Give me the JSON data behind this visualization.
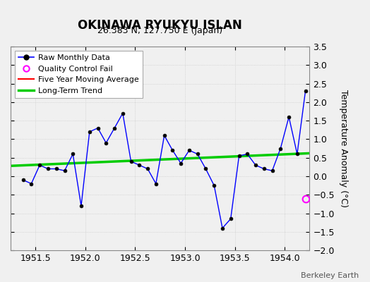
{
  "title": "OKINAWA RYUKYU ISLAN",
  "subtitle": "26.383 N, 127.750 E (Japan)",
  "ylabel": "Temperature Anomaly (°C)",
  "attribution": "Berkeley Earth",
  "xlim": [
    1951.25,
    1954.25
  ],
  "ylim": [
    -2.0,
    3.5
  ],
  "yticks": [
    -2,
    -1.5,
    -1,
    -0.5,
    0,
    0.5,
    1,
    1.5,
    2,
    2.5,
    3,
    3.5
  ],
  "xticks": [
    1951.5,
    1952.0,
    1952.5,
    1953.0,
    1953.5,
    1954.0
  ],
  "background_color": "#f0f0f0",
  "plot_bg_color": "#f0f0f0",
  "raw_x": [
    1951.375,
    1951.458,
    1951.542,
    1951.625,
    1951.708,
    1951.792,
    1951.875,
    1951.958,
    1952.042,
    1952.125,
    1952.208,
    1952.292,
    1952.375,
    1952.458,
    1952.542,
    1952.625,
    1952.708,
    1952.792,
    1952.875,
    1952.958,
    1953.042,
    1953.125,
    1953.208,
    1953.292,
    1953.375,
    1953.458,
    1953.542,
    1953.625,
    1953.708,
    1953.792,
    1953.875,
    1953.958,
    1954.042,
    1954.125,
    1954.208
  ],
  "raw_y": [
    -0.1,
    -0.2,
    0.3,
    0.2,
    0.2,
    0.15,
    0.6,
    -0.8,
    1.2,
    1.3,
    0.9,
    1.3,
    1.7,
    0.4,
    0.3,
    0.2,
    -0.2,
    1.1,
    0.7,
    0.35,
    0.7,
    0.6,
    0.2,
    -0.25,
    -1.4,
    -1.15,
    0.55,
    0.6,
    0.3,
    0.2,
    0.15,
    0.75,
    1.6,
    0.6,
    2.3
  ],
  "qc_fail_x": [
    1954.208
  ],
  "qc_fail_y": [
    -0.6
  ],
  "trend_x": [
    1951.25,
    1954.25
  ],
  "trend_y": [
    0.28,
    0.62
  ],
  "raw_line_color": "#0000ff",
  "raw_marker_color": "#000000",
  "qc_color": "#ff00ff",
  "moving_avg_color": "#ff0000",
  "trend_color": "#00cc00",
  "grid_color": "#cccccc",
  "spine_color": "#888888"
}
